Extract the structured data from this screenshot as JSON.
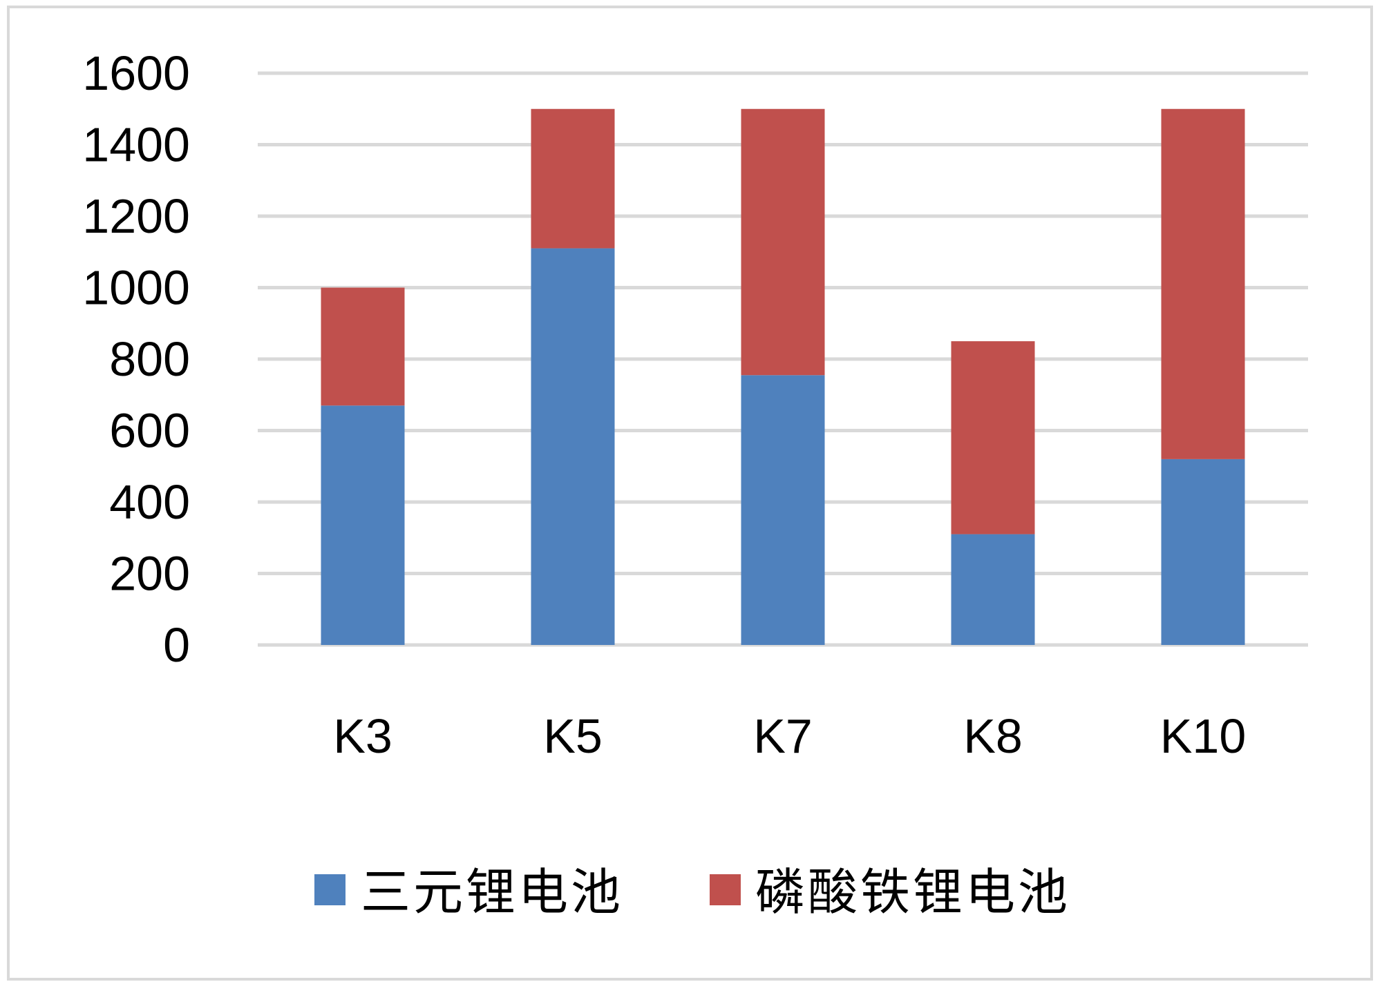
{
  "chart_data": {
    "type": "bar",
    "stacked": true,
    "categories": [
      "K3",
      "K5",
      "K7",
      "K8",
      "K10"
    ],
    "series": [
      {
        "name": "三元锂电池",
        "color": "#4f81bd",
        "values": [
          670,
          1110,
          755,
          310,
          520
        ]
      },
      {
        "name": "磷酸铁锂电池",
        "color": "#c0504d",
        "values": [
          330,
          390,
          745,
          540,
          980
        ]
      }
    ],
    "title": "",
    "xlabel": "",
    "ylabel": "",
    "ylim": [
      0,
      1600
    ],
    "yticks": [
      "0",
      "200",
      "400",
      "600",
      "800",
      "1000",
      "1200",
      "1400",
      "1600"
    ],
    "grid": true,
    "gridline_color": "#d9d9d9",
    "legend_position": "bottom"
  }
}
